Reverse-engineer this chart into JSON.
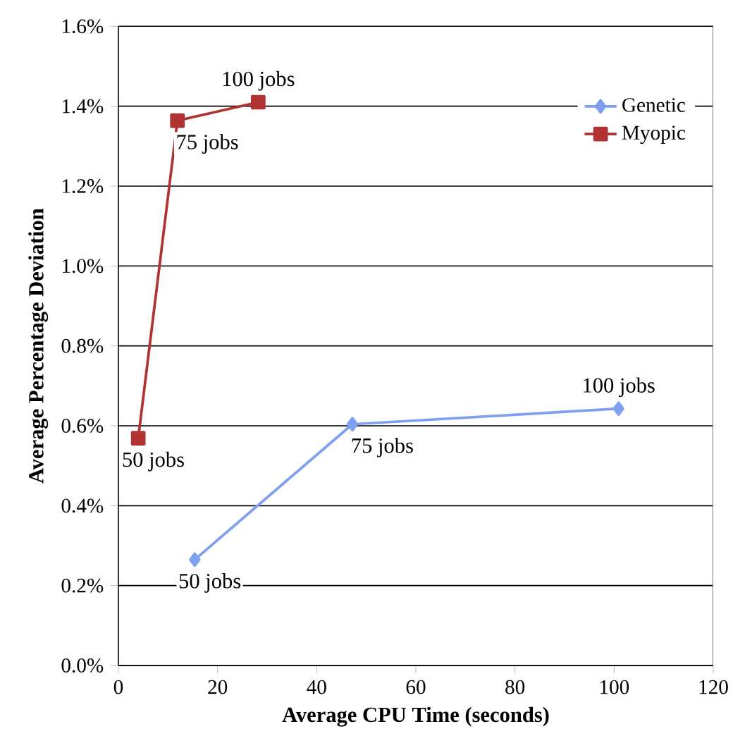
{
  "chart_data": {
    "type": "line",
    "xlabel": "Average CPU Time (seconds)",
    "ylabel": "Average Percentage Deviation",
    "xlim": [
      0,
      120
    ],
    "xticks": [
      0,
      20,
      40,
      60,
      80,
      100,
      120
    ],
    "ylim": [
      0,
      1.6
    ],
    "yticks": [
      {
        "value": 0,
        "label": "0.0%"
      },
      {
        "value": 0.2,
        "label": "0.2%"
      },
      {
        "value": 0.4,
        "label": "0.4%"
      },
      {
        "value": 0.6,
        "label": "0.6%"
      },
      {
        "value": 0.8,
        "label": "0.8%"
      },
      {
        "value": 1.0,
        "label": "1.0%"
      },
      {
        "value": 1.2,
        "label": "1.2%"
      },
      {
        "value": 1.4,
        "label": "1.4%"
      },
      {
        "value": 1.6,
        "label": "1.6%"
      }
    ],
    "grid": "y",
    "legend": "top right",
    "line_style": "solid",
    "series": [
      {
        "name": "Genetic",
        "color": "#7f9ff0",
        "marker": "diamond",
        "x": [
          15.4,
          47.2,
          100.9
        ],
        "values": [
          0.265,
          0.604,
          0.643
        ]
      },
      {
        "name": "Myopic",
        "color": "#b03232",
        "marker": "square",
        "x": [
          4.0,
          11.9,
          28.2
        ],
        "values": [
          0.569,
          1.364,
          1.41
        ]
      }
    ],
    "annotations": [
      {
        "text": "50 jobs",
        "x": 15.4,
        "y": 0.265
      },
      {
        "text": "75 jobs",
        "x": 47.2,
        "y": 0.604
      },
      {
        "text": "100 jobs",
        "x": 100.9,
        "y": 0.643
      },
      {
        "text": "50 jobs",
        "x": 4.0,
        "y": 0.569
      },
      {
        "text": "75 jobs",
        "x": 11.9,
        "y": 1.364
      },
      {
        "text": "100 jobs",
        "x": 28.2,
        "y": 1.41
      }
    ]
  }
}
